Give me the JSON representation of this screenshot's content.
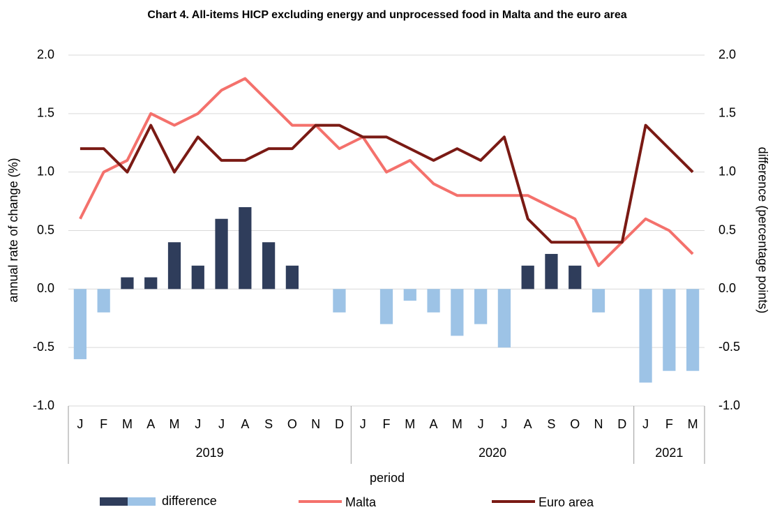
{
  "chart_data": {
    "type": "combo",
    "title": "Chart 4. All-items HICP excluding energy and unprocessed food in Malta and the euro area",
    "x_label": "period",
    "y_label": "annual rate of change (%)",
    "y2_label": "difference (percentage points)",
    "category_groups": [
      {
        "name": "2019",
        "categories": [
          "J",
          "F",
          "M",
          "A",
          "M",
          "J",
          "J",
          "A",
          "S",
          "O",
          "N",
          "D"
        ]
      },
      {
        "name": "2020",
        "categories": [
          "J",
          "F",
          "M",
          "A",
          "M",
          "J",
          "J",
          "A",
          "S",
          "O",
          "N",
          "D"
        ]
      },
      {
        "name": "2021",
        "categories": [
          "J",
          "F",
          "M"
        ]
      }
    ],
    "series": [
      {
        "name": "difference",
        "type": "bar",
        "axis": "y2",
        "color": "#2f3d5b",
        "negative_color": "#9dc3e6",
        "values": [
          -0.6,
          -0.2,
          0.1,
          0.1,
          0.4,
          0.2,
          0.6,
          0.7,
          0.4,
          0.2,
          0,
          -0.2,
          0,
          -0.3,
          -0.1,
          -0.2,
          -0.4,
          -0.3,
          -0.5,
          0.2,
          0.3,
          0.2,
          -0.2,
          0,
          -0.8,
          -0.7,
          -0.7
        ]
      },
      {
        "name": "Malta",
        "type": "line",
        "color": "#f4716c",
        "values": [
          0.6,
          1.0,
          1.1,
          1.5,
          1.4,
          1.5,
          1.7,
          1.8,
          1.6,
          1.4,
          1.4,
          1.2,
          1.3,
          1.0,
          1.1,
          0.9,
          0.8,
          0.8,
          0.8,
          0.8,
          0.7,
          0.6,
          0.2,
          0.4,
          0.6,
          0.5,
          0.3
        ]
      },
      {
        "name": "Euro area",
        "type": "line",
        "color": "#7a1a14",
        "values": [
          1.2,
          1.2,
          1.0,
          1.4,
          1.0,
          1.3,
          1.1,
          1.1,
          1.2,
          1.2,
          1.4,
          1.4,
          1.3,
          1.3,
          1.2,
          1.1,
          1.2,
          1.1,
          1.3,
          0.6,
          0.4,
          0.4,
          0.4,
          0.4,
          1.4,
          1.2,
          1.0
        ]
      }
    ],
    "ylim": [
      -1.0,
      2.0
    ],
    "yticks": [
      {
        "value": -1.0,
        "label": "-1.0"
      },
      {
        "value": -0.5,
        "label": "-0.5"
      },
      {
        "value": 0,
        "label": "0.0"
      },
      {
        "value": 0.5,
        "label": "0.5"
      },
      {
        "value": 1.0,
        "label": "1.0"
      },
      {
        "value": 1.5,
        "label": "1.5"
      },
      {
        "value": 2.0,
        "label": "2.0"
      }
    ],
    "y2lim": [
      -1.0,
      2.0
    ],
    "y2ticks": [
      {
        "value": -1.0,
        "label": "-1.0"
      },
      {
        "value": -0.5,
        "label": "-0.5"
      },
      {
        "value": 0,
        "label": "0.0"
      },
      {
        "value": 0.5,
        "label": "0.5"
      },
      {
        "value": 1.0,
        "label": "1.0"
      },
      {
        "value": 1.5,
        "label": "1.5"
      },
      {
        "value": 2.0,
        "label": "2.0"
      }
    ],
    "grid": true
  }
}
